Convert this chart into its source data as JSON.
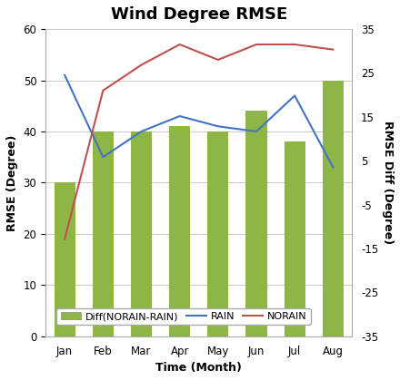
{
  "months": [
    "Jan",
    "Feb",
    "Mar",
    "Apr",
    "May",
    "Jun",
    "Jul",
    "Aug"
  ],
  "rain": [
    51,
    35,
    40,
    43,
    41,
    40,
    47,
    33
  ],
  "norain": [
    19,
    48,
    53,
    57,
    54,
    57,
    57,
    56
  ],
  "diff": [
    30,
    40,
    40,
    41,
    40,
    44,
    38,
    50
  ],
  "title": "Wind Degree RMSE",
  "xlabel": "Time (Month)",
  "ylabel_left": "RMSE (Degree)",
  "ylabel_right": "RMSE Diff (Degree)",
  "ylim_left": [
    0,
    60
  ],
  "ylim_right": [
    -35,
    35
  ],
  "yticks_left": [
    0,
    10,
    20,
    30,
    40,
    50,
    60
  ],
  "yticks_right": [
    -35,
    -25,
    -15,
    -5,
    5,
    15,
    25,
    35
  ],
  "bar_color": "#8db645",
  "rain_color": "#4472c4",
  "norain_color": "#c0504d",
  "bg_color": "#ffffff",
  "grid_color": "#c8c8c8",
  "title_fontsize": 13,
  "label_fontsize": 9,
  "tick_fontsize": 8.5,
  "legend_fontsize": 8
}
